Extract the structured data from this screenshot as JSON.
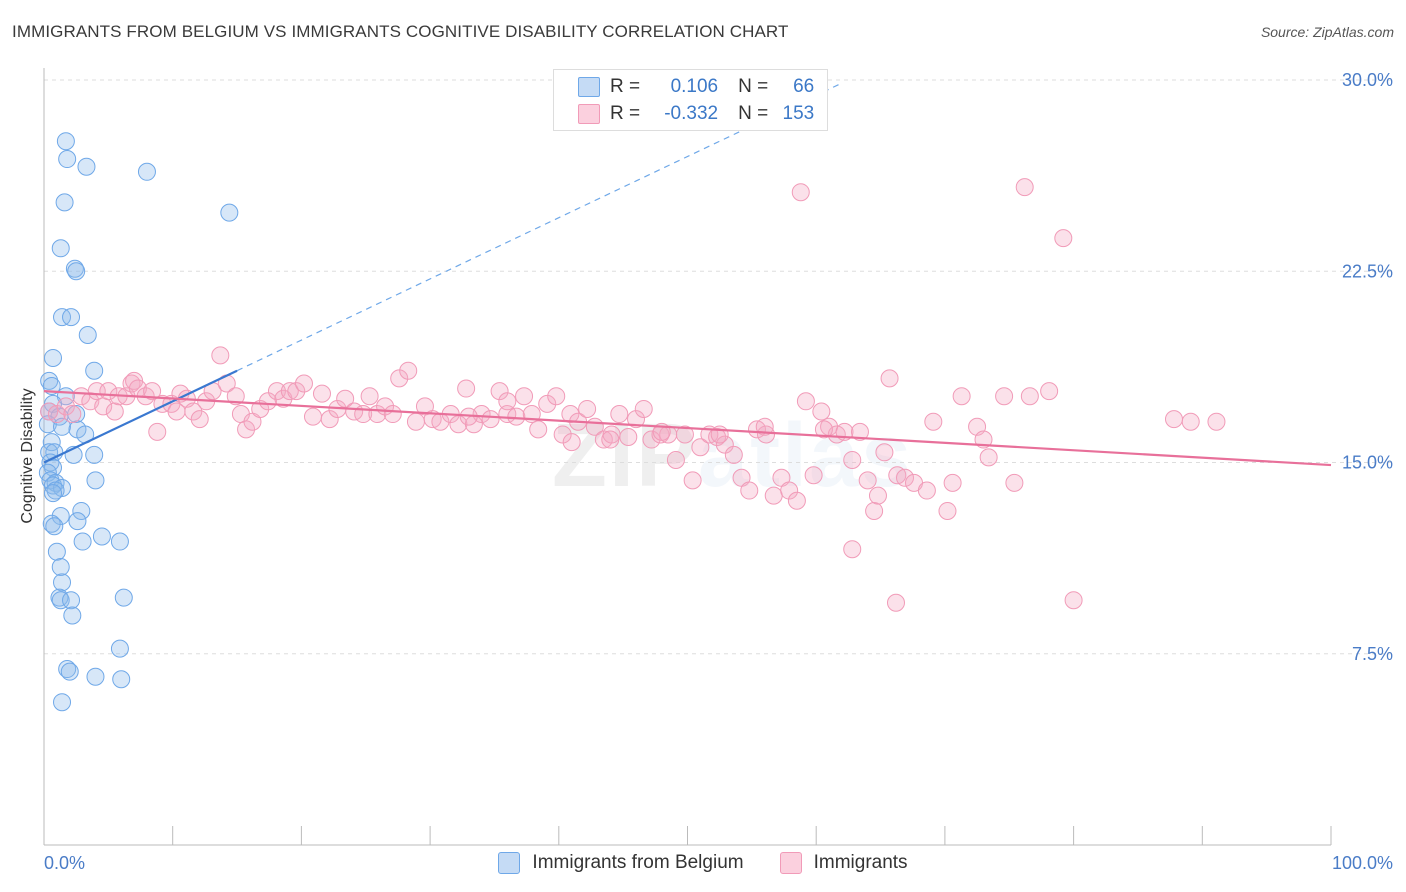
{
  "header": {
    "title": "IMMIGRANTS FROM BELGIUM VS IMMIGRANTS COGNITIVE DISABILITY CORRELATION CHART",
    "source": "Source: ZipAtlas.com"
  },
  "stats": {
    "rows": [
      {
        "r_label": "R =",
        "r_value": "0.106",
        "n_label": "N =",
        "n_value": "66",
        "color": "#6fa8e8"
      },
      {
        "r_label": "R =",
        "r_value": "-0.332",
        "n_label": "N =",
        "n_value": "153",
        "color": "#f19bb8"
      }
    ]
  },
  "legend": {
    "items": [
      {
        "label": "Immigrants from Belgium",
        "color": "#6fa8e8"
      },
      {
        "label": "Immigrants",
        "color": "#f19bb8"
      }
    ]
  },
  "watermark": {
    "zip": "ZIP",
    "atlas": "atlas"
  },
  "chart_data": {
    "type": "scatter",
    "title": "IMMIGRANTS FROM BELGIUM VS IMMIGRANTS COGNITIVE DISABILITY CORRELATION CHART",
    "xlabel": "",
    "ylabel": "Cognitive Disability",
    "xlim": [
      0,
      100
    ],
    "ylim": [
      0,
      30
    ],
    "x_tick_labels": [
      "0.0%",
      "100.0%"
    ],
    "y_ticks": [
      7.5,
      15.0,
      22.5,
      30.0
    ],
    "y_tick_labels": [
      "7.5%",
      "15.0%",
      "22.5%",
      "30.0%"
    ],
    "grid": true,
    "legend_position": "bottom",
    "series": [
      {
        "name": "Immigrants from Belgium",
        "color": "#6fa8e8",
        "trend": {
          "x0": 0,
          "y0": 15.0,
          "x1": 15,
          "y1": 18.6,
          "dashed_to_x": 62
        },
        "points": [
          [
            1.7,
            27.6
          ],
          [
            1.8,
            26.9
          ],
          [
            3.3,
            26.6
          ],
          [
            8.0,
            26.4
          ],
          [
            1.6,
            25.2
          ],
          [
            14.4,
            24.8
          ],
          [
            1.3,
            23.4
          ],
          [
            2.4,
            22.6
          ],
          [
            2.5,
            22.5
          ],
          [
            1.4,
            20.7
          ],
          [
            2.1,
            20.7
          ],
          [
            3.4,
            20.0
          ],
          [
            0.7,
            19.1
          ],
          [
            3.9,
            18.6
          ],
          [
            0.4,
            18.2
          ],
          [
            0.6,
            18.0
          ],
          [
            1.7,
            17.6
          ],
          [
            0.7,
            17.3
          ],
          [
            0.4,
            17.0
          ],
          [
            2.5,
            16.9
          ],
          [
            1.2,
            16.8
          ],
          [
            0.3,
            16.5
          ],
          [
            1.4,
            16.4
          ],
          [
            2.6,
            16.3
          ],
          [
            3.2,
            16.1
          ],
          [
            0.6,
            15.8
          ],
          [
            0.4,
            15.4
          ],
          [
            0.8,
            15.4
          ],
          [
            2.3,
            15.3
          ],
          [
            3.9,
            15.3
          ],
          [
            0.5,
            15.0
          ],
          [
            0.7,
            14.8
          ],
          [
            0.3,
            14.6
          ],
          [
            0.5,
            14.3
          ],
          [
            0.9,
            14.2
          ],
          [
            0.7,
            14.1
          ],
          [
            1.4,
            14.0
          ],
          [
            0.9,
            13.9
          ],
          [
            4.0,
            14.3
          ],
          [
            0.7,
            13.8
          ],
          [
            2.9,
            13.1
          ],
          [
            1.3,
            12.9
          ],
          [
            2.6,
            12.7
          ],
          [
            0.6,
            12.6
          ],
          [
            0.8,
            12.5
          ],
          [
            3.0,
            11.9
          ],
          [
            5.9,
            11.9
          ],
          [
            4.5,
            12.1
          ],
          [
            1.0,
            11.5
          ],
          [
            1.3,
            10.9
          ],
          [
            1.4,
            10.3
          ],
          [
            1.2,
            9.7
          ],
          [
            1.3,
            9.6
          ],
          [
            2.1,
            9.6
          ],
          [
            6.2,
            9.7
          ],
          [
            2.2,
            9.0
          ],
          [
            5.9,
            7.7
          ],
          [
            1.8,
            6.9
          ],
          [
            2.0,
            6.8
          ],
          [
            4.0,
            6.6
          ],
          [
            6.0,
            6.5
          ],
          [
            1.4,
            5.6
          ]
        ]
      },
      {
        "name": "Immigrants",
        "color": "#f19bb8",
        "trend": {
          "x0": 0,
          "y0": 17.8,
          "x1": 100,
          "y1": 14.9
        },
        "points": [
          [
            0.4,
            17.0
          ],
          [
            1.0,
            16.9
          ],
          [
            1.7,
            17.2
          ],
          [
            2.2,
            16.9
          ],
          [
            2.9,
            17.6
          ],
          [
            3.6,
            17.4
          ],
          [
            4.1,
            17.8
          ],
          [
            4.6,
            17.2
          ],
          [
            5.0,
            17.8
          ],
          [
            5.5,
            17.0
          ],
          [
            5.8,
            17.6
          ],
          [
            6.4,
            17.6
          ],
          [
            6.8,
            18.1
          ],
          [
            7.0,
            18.2
          ],
          [
            7.3,
            17.9
          ],
          [
            7.9,
            17.6
          ],
          [
            8.4,
            17.8
          ],
          [
            8.8,
            16.2
          ],
          [
            9.2,
            17.3
          ],
          [
            9.9,
            17.3
          ],
          [
            10.3,
            17.0
          ],
          [
            10.6,
            17.7
          ],
          [
            11.1,
            17.5
          ],
          [
            11.6,
            17.0
          ],
          [
            12.1,
            16.7
          ],
          [
            12.6,
            17.4
          ],
          [
            13.1,
            17.8
          ],
          [
            13.7,
            19.2
          ],
          [
            14.2,
            18.1
          ],
          [
            14.9,
            17.6
          ],
          [
            15.3,
            16.9
          ],
          [
            15.7,
            16.3
          ],
          [
            16.2,
            16.6
          ],
          [
            16.8,
            17.1
          ],
          [
            17.4,
            17.4
          ],
          [
            18.1,
            17.8
          ],
          [
            18.6,
            17.5
          ],
          [
            19.1,
            17.8
          ],
          [
            19.6,
            17.8
          ],
          [
            20.2,
            18.1
          ],
          [
            20.9,
            16.8
          ],
          [
            21.6,
            17.7
          ],
          [
            22.2,
            16.7
          ],
          [
            22.8,
            17.1
          ],
          [
            23.4,
            17.5
          ],
          [
            24.1,
            17.0
          ],
          [
            24.8,
            16.9
          ],
          [
            25.3,
            17.6
          ],
          [
            25.9,
            16.9
          ],
          [
            26.5,
            17.2
          ],
          [
            27.1,
            16.9
          ],
          [
            27.6,
            18.3
          ],
          [
            28.3,
            18.6
          ],
          [
            28.9,
            16.6
          ],
          [
            29.6,
            17.2
          ],
          [
            30.2,
            16.7
          ],
          [
            30.8,
            16.6
          ],
          [
            31.6,
            16.9
          ],
          [
            32.2,
            16.5
          ],
          [
            32.8,
            17.9
          ],
          [
            33.4,
            16.5
          ],
          [
            34.0,
            16.9
          ],
          [
            34.7,
            16.7
          ],
          [
            35.4,
            17.8
          ],
          [
            36.0,
            16.9
          ],
          [
            36.7,
            16.8
          ],
          [
            37.3,
            17.6
          ],
          [
            37.9,
            16.9
          ],
          [
            38.4,
            16.3
          ],
          [
            39.1,
            17.3
          ],
          [
            39.8,
            17.6
          ],
          [
            40.3,
            16.1
          ],
          [
            40.9,
            16.9
          ],
          [
            41.5,
            16.6
          ],
          [
            42.2,
            17.1
          ],
          [
            42.8,
            16.4
          ],
          [
            43.5,
            15.9
          ],
          [
            44.1,
            16.1
          ],
          [
            44.7,
            16.9
          ],
          [
            45.4,
            16.0
          ],
          [
            46.0,
            16.7
          ],
          [
            46.6,
            17.1
          ],
          [
            47.2,
            15.9
          ],
          [
            47.9,
            16.1
          ],
          [
            48.5,
            16.1
          ],
          [
            49.1,
            15.1
          ],
          [
            49.8,
            16.1
          ],
          [
            50.4,
            14.3
          ],
          [
            51.0,
            15.6
          ],
          [
            51.7,
            16.1
          ],
          [
            52.3,
            16.0
          ],
          [
            52.9,
            15.7
          ],
          [
            53.6,
            15.3
          ],
          [
            54.2,
            14.4
          ],
          [
            54.8,
            13.9
          ],
          [
            55.4,
            16.3
          ],
          [
            56.1,
            16.1
          ],
          [
            56.7,
            13.7
          ],
          [
            57.3,
            14.4
          ],
          [
            57.9,
            13.9
          ],
          [
            58.5,
            13.5
          ],
          [
            59.2,
            17.4
          ],
          [
            59.8,
            14.5
          ],
          [
            60.4,
            17.0
          ],
          [
            61.0,
            16.4
          ],
          [
            61.6,
            16.1
          ],
          [
            62.2,
            16.2
          ],
          [
            62.8,
            15.1
          ],
          [
            63.4,
            16.2
          ],
          [
            64.0,
            14.3
          ],
          [
            64.5,
            13.1
          ],
          [
            64.8,
            13.7
          ],
          [
            65.3,
            15.4
          ],
          [
            65.7,
            18.3
          ],
          [
            66.3,
            14.5
          ],
          [
            66.9,
            14.4
          ],
          [
            67.6,
            14.2
          ],
          [
            68.6,
            13.9
          ],
          [
            69.1,
            16.6
          ],
          [
            70.2,
            13.1
          ],
          [
            70.6,
            14.2
          ],
          [
            71.3,
            17.6
          ],
          [
            72.5,
            16.4
          ],
          [
            73.0,
            15.9
          ],
          [
            73.4,
            15.2
          ],
          [
            74.6,
            17.6
          ],
          [
            75.4,
            14.2
          ],
          [
            76.6,
            17.6
          ],
          [
            78.1,
            17.8
          ],
          [
            66.2,
            9.5
          ],
          [
            80.0,
            9.6
          ],
          [
            58.8,
            25.6
          ],
          [
            76.2,
            25.8
          ],
          [
            79.2,
            23.8
          ],
          [
            62.8,
            11.6
          ],
          [
            89.1,
            16.6
          ],
          [
            91.1,
            16.6
          ],
          [
            87.8,
            16.7
          ],
          [
            60.6,
            16.3
          ],
          [
            56.0,
            16.4
          ],
          [
            52.5,
            16.1
          ],
          [
            48.0,
            16.2
          ],
          [
            44.0,
            15.9
          ],
          [
            41.0,
            15.8
          ],
          [
            36.0,
            17.4
          ],
          [
            33.0,
            16.8
          ]
        ]
      }
    ]
  }
}
